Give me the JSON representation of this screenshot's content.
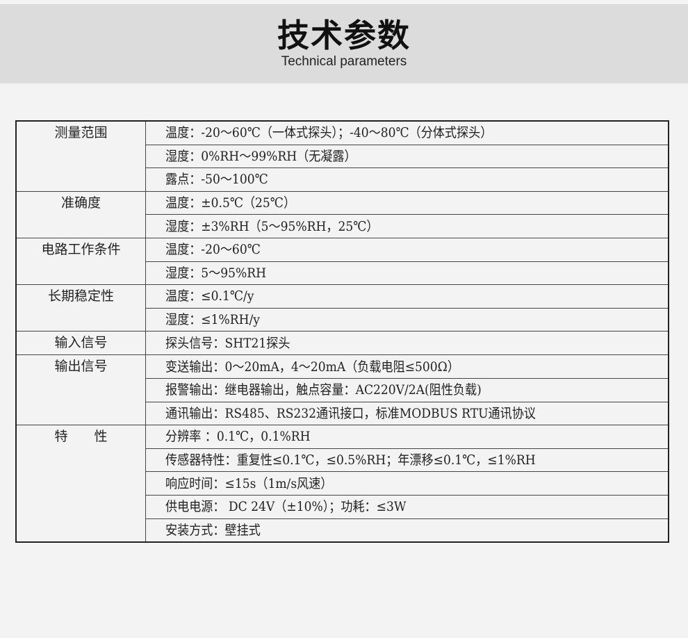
{
  "header": {
    "title": "技术参数",
    "subtitle": "Technical parameters"
  },
  "groups": [
    {
      "label": "测量范围",
      "rows": [
        "温度：-20～60℃（一体式探头）；-40～80℃（分体式探头）",
        "湿度：0%RH～99%RH（无凝露）",
        "露点：-50～100℃"
      ]
    },
    {
      "label": "准确度",
      "rows": [
        "温度：±0.5℃（25℃）",
        "湿度：±3%RH（5～95%RH，25℃）"
      ]
    },
    {
      "label": "电路工作条件",
      "rows": [
        "温度：-20～60℃",
        "湿度：5～95%RH"
      ]
    },
    {
      "label": "长期稳定性",
      "rows": [
        "温度：≤0.1℃/y",
        "湿度：≤1%RH/y"
      ]
    },
    {
      "label": "输入信号",
      "rows": [
        "探头信号：SHT21探头"
      ]
    },
    {
      "label": "输出信号",
      "rows": [
        "变送输出：0～20mA，4～20mA（负载电阻≤500Ω）",
        "报警输出：继电器输出，触点容量：AC220V/2A(阻性负载)",
        "通讯输出：RS485、RS232通讯接口，标准MODBUS RTU通讯协议"
      ]
    },
    {
      "label": "特　　性",
      "rows": [
        "分辨率 ：0.1℃，0.1%RH",
        "传感器特性：重复性≤0.1℃，≤0.5%RH；年漂移≤0.1℃，≤1%RH",
        "响应时间：≤15s（1m/s风速）",
        "供电电源： DC 24V（±10%）；功耗：≤3W",
        "安装方式：壁挂式"
      ]
    }
  ]
}
